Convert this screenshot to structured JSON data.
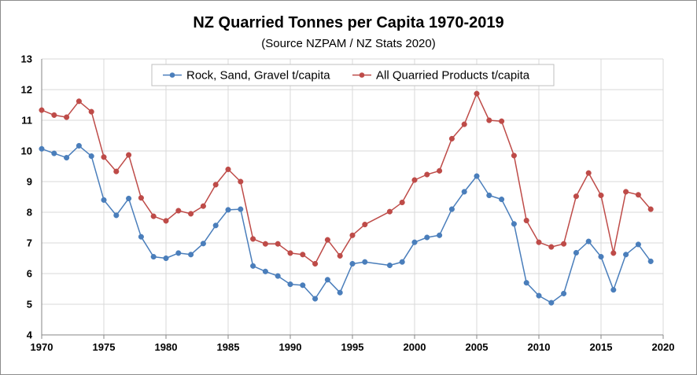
{
  "chart_data": {
    "type": "line",
    "title": "NZ Quarried Tonnes per Capita 1970-2019",
    "subtitle": "(Source NZPAM / NZ Stats 2020)",
    "xlim": [
      1970,
      2020
    ],
    "ylim": [
      4,
      13
    ],
    "xticks": [
      1970,
      1975,
      1980,
      1985,
      1990,
      1995,
      2000,
      2005,
      2010,
      2015,
      2020
    ],
    "yticks": [
      4,
      5,
      6,
      7,
      8,
      9,
      10,
      11,
      12,
      13
    ],
    "grid": true,
    "legend": "top",
    "series": [
      {
        "name": "Rock, Sand, Gravel t/capita",
        "color": "#4a7ebb",
        "x": [
          1970,
          1971,
          1972,
          1973,
          1974,
          1975,
          1976,
          1977,
          1978,
          1979,
          1980,
          1981,
          1982,
          1983,
          1984,
          1985,
          1986,
          1987,
          1988,
          1989,
          1990,
          1991,
          1992,
          1993,
          1994,
          1995,
          1996,
          1998,
          1999,
          2000,
          2001,
          2002,
          2003,
          2004,
          2005,
          2006,
          2007,
          2008,
          2009,
          2010,
          2011,
          2012,
          2013,
          2014,
          2015,
          2016,
          2017,
          2018,
          2019
        ],
        "values": [
          10.07,
          9.92,
          9.78,
          10.17,
          9.83,
          8.4,
          7.9,
          8.45,
          7.2,
          6.55,
          6.5,
          6.67,
          6.62,
          6.98,
          7.57,
          8.08,
          8.1,
          6.25,
          6.07,
          5.92,
          5.65,
          5.62,
          5.18,
          5.8,
          5.38,
          6.32,
          6.38,
          6.27,
          6.38,
          7.02,
          7.18,
          7.25,
          8.1,
          8.67,
          9.18,
          8.55,
          8.42,
          7.62,
          5.7,
          5.28,
          5.05,
          5.35,
          6.68,
          7.05,
          6.55,
          5.47,
          6.62,
          6.95,
          6.4
        ]
      },
      {
        "name": "All Quarried Products t/capita",
        "color": "#be4b48",
        "x": [
          1970,
          1971,
          1972,
          1973,
          1974,
          1975,
          1976,
          1977,
          1978,
          1979,
          1980,
          1981,
          1982,
          1983,
          1984,
          1985,
          1986,
          1987,
          1988,
          1989,
          1990,
          1991,
          1992,
          1993,
          1994,
          1995,
          1996,
          1998,
          1999,
          2000,
          2001,
          2002,
          2003,
          2004,
          2005,
          2006,
          2007,
          2008,
          2009,
          2010,
          2011,
          2012,
          2013,
          2014,
          2015,
          2016,
          2017,
          2018,
          2019
        ],
        "values": [
          11.33,
          11.17,
          11.1,
          11.62,
          11.28,
          9.8,
          9.33,
          9.87,
          8.47,
          7.87,
          7.72,
          8.05,
          7.95,
          8.2,
          8.9,
          9.4,
          9.0,
          7.13,
          6.97,
          6.97,
          6.67,
          6.62,
          6.32,
          7.1,
          6.58,
          7.25,
          7.6,
          8.02,
          8.32,
          9.05,
          9.23,
          9.35,
          10.4,
          10.87,
          11.87,
          11.0,
          10.97,
          9.85,
          7.73,
          7.02,
          6.87,
          6.97,
          8.52,
          9.28,
          8.55,
          6.67,
          8.67,
          8.57,
          8.1
        ]
      }
    ]
  }
}
